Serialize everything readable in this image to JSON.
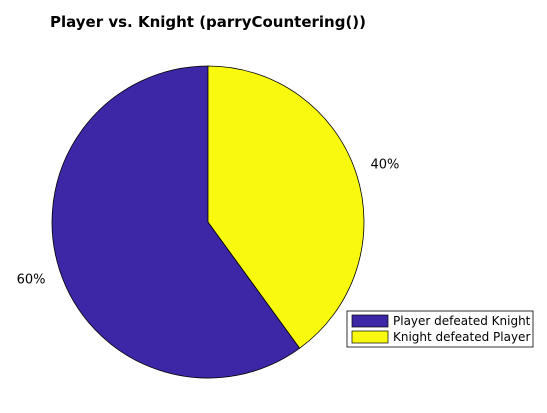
{
  "chart_data": {
    "type": "pie",
    "title": "Player vs. Knight (parryCountering())",
    "slices": [
      {
        "label": "Player defeated Knight",
        "value": 60,
        "percent_label": "60%",
        "color": "#3d27a7"
      },
      {
        "label": "Knight defeated Player",
        "value": 40,
        "percent_label": "40%",
        "color": "#f9f90f"
      }
    ],
    "legend": {
      "placement": "bottom-right"
    },
    "grid": false
  }
}
